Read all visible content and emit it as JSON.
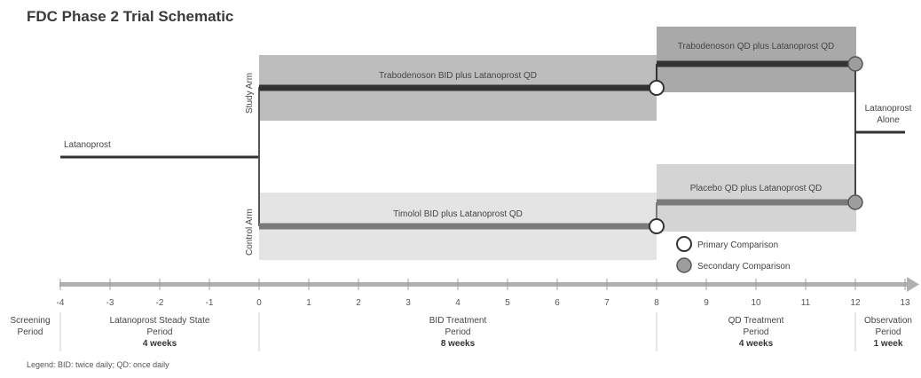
{
  "title": "FDC Phase 2 Trial Schematic",
  "colors": {
    "band_dark": "#bdbdbd",
    "band_darker": "#a9a9a9",
    "band_light": "#e4e4e4",
    "line_dark": "#333333",
    "line_gray": "#7a7a7a",
    "axis": "#b0b0b0",
    "secondary_fill": "#9d9d9d"
  },
  "arms": {
    "study": "Study Arm",
    "control": "Control Arm"
  },
  "treatments": {
    "latanoprost": "Latanoprost",
    "study_bid": "Trabodenoson BID plus Latanoprost QD",
    "study_qd": "Trabodenoson QD plus Latanoprost QD",
    "control_bid": "Timolol BID plus Latanoprost QD",
    "control_qd": "Placebo QD plus Latanoprost QD",
    "alone_line1": "Latanoprost",
    "alone_line2": "Alone"
  },
  "comparisons": {
    "primary": "Primary Comparison",
    "secondary": "Secondary Comparison"
  },
  "axis_ticks": [
    "-4",
    "-3",
    "-2",
    "-1",
    "0",
    "1",
    "2",
    "3",
    "4",
    "5",
    "6",
    "7",
    "8",
    "9",
    "10",
    "11",
    "12",
    "13"
  ],
  "periods": {
    "screening": [
      "Screening",
      "Period"
    ],
    "steady": [
      "Latanoprost Steady State",
      "Period"
    ],
    "steady_weeks": "4 weeks",
    "bid": [
      "BID Treatment",
      "Period"
    ],
    "bid_weeks": "8 weeks",
    "qd": [
      "QD Treatment",
      "Period"
    ],
    "qd_weeks": "4 weeks",
    "obs": [
      "Observation",
      "Period"
    ],
    "obs_weeks": "1 week"
  },
  "legend": "Legend: BID: twice daily; QD: once daily"
}
